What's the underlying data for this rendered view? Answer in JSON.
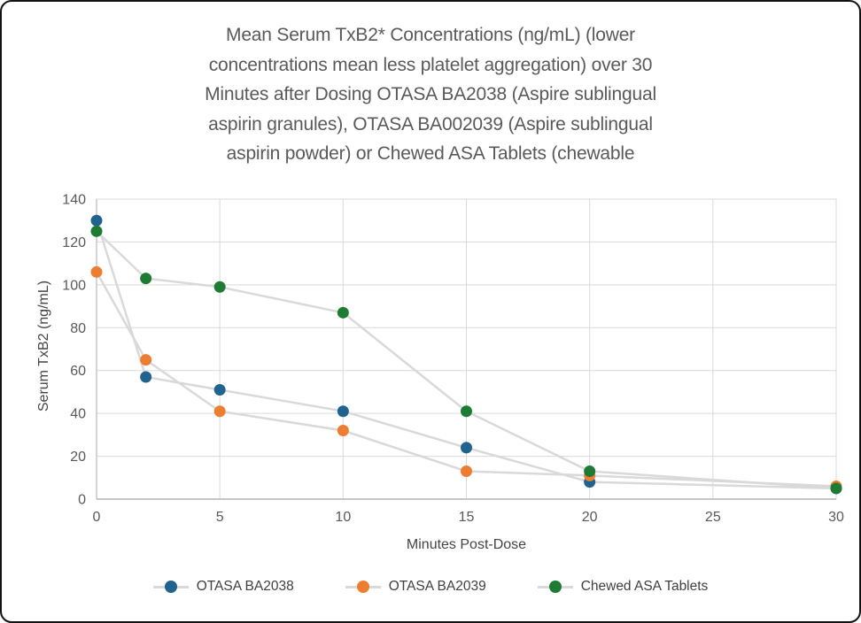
{
  "title": {
    "lines": [
      "Mean Serum TxB2* Concentrations (ng/mL) (lower",
      "concentrations mean less platelet aggregation) over 30",
      "Minutes after Dosing OTASA BA2038 (Aspire sublingual",
      "aspirin granules), OTASA BA002039 (Aspire sublingual",
      "aspirin powder) or Chewed ASA Tablets (chewable"
    ],
    "color": "#595959"
  },
  "chart_data": {
    "type": "line",
    "x": [
      0,
      2,
      5,
      10,
      15,
      20,
      30
    ],
    "series": [
      {
        "name": "OTASA BA2038",
        "color": "#20638f",
        "values": [
          130,
          57,
          51,
          41,
          24,
          8,
          5
        ]
      },
      {
        "name": "OTASA BA2039",
        "color": "#ed7d31",
        "values": [
          106,
          65,
          41,
          32,
          13,
          11,
          6
        ]
      },
      {
        "name": "Chewed ASA Tablets",
        "color": "#1e7b34",
        "values": [
          125,
          103,
          99,
          87,
          41,
          13,
          5
        ]
      }
    ],
    "xlabel": "Minutes Post-Dose",
    "ylabel": "Serum TxB2 (ng/mL)",
    "x_ticks": [
      0,
      5,
      10,
      15,
      20,
      25,
      30
    ],
    "y_ticks": [
      0,
      20,
      40,
      60,
      80,
      100,
      120,
      140
    ],
    "xlim": [
      0,
      30
    ],
    "ylim": [
      0,
      140
    ],
    "grid": true,
    "legend_position": "bottom",
    "connector_line_color": "#d9d9d9",
    "gridline_color": "#d9d9d9",
    "axis_line_color": "#c6c6c6",
    "tick_label_color": "#595959",
    "marker_radius": 6.5
  }
}
